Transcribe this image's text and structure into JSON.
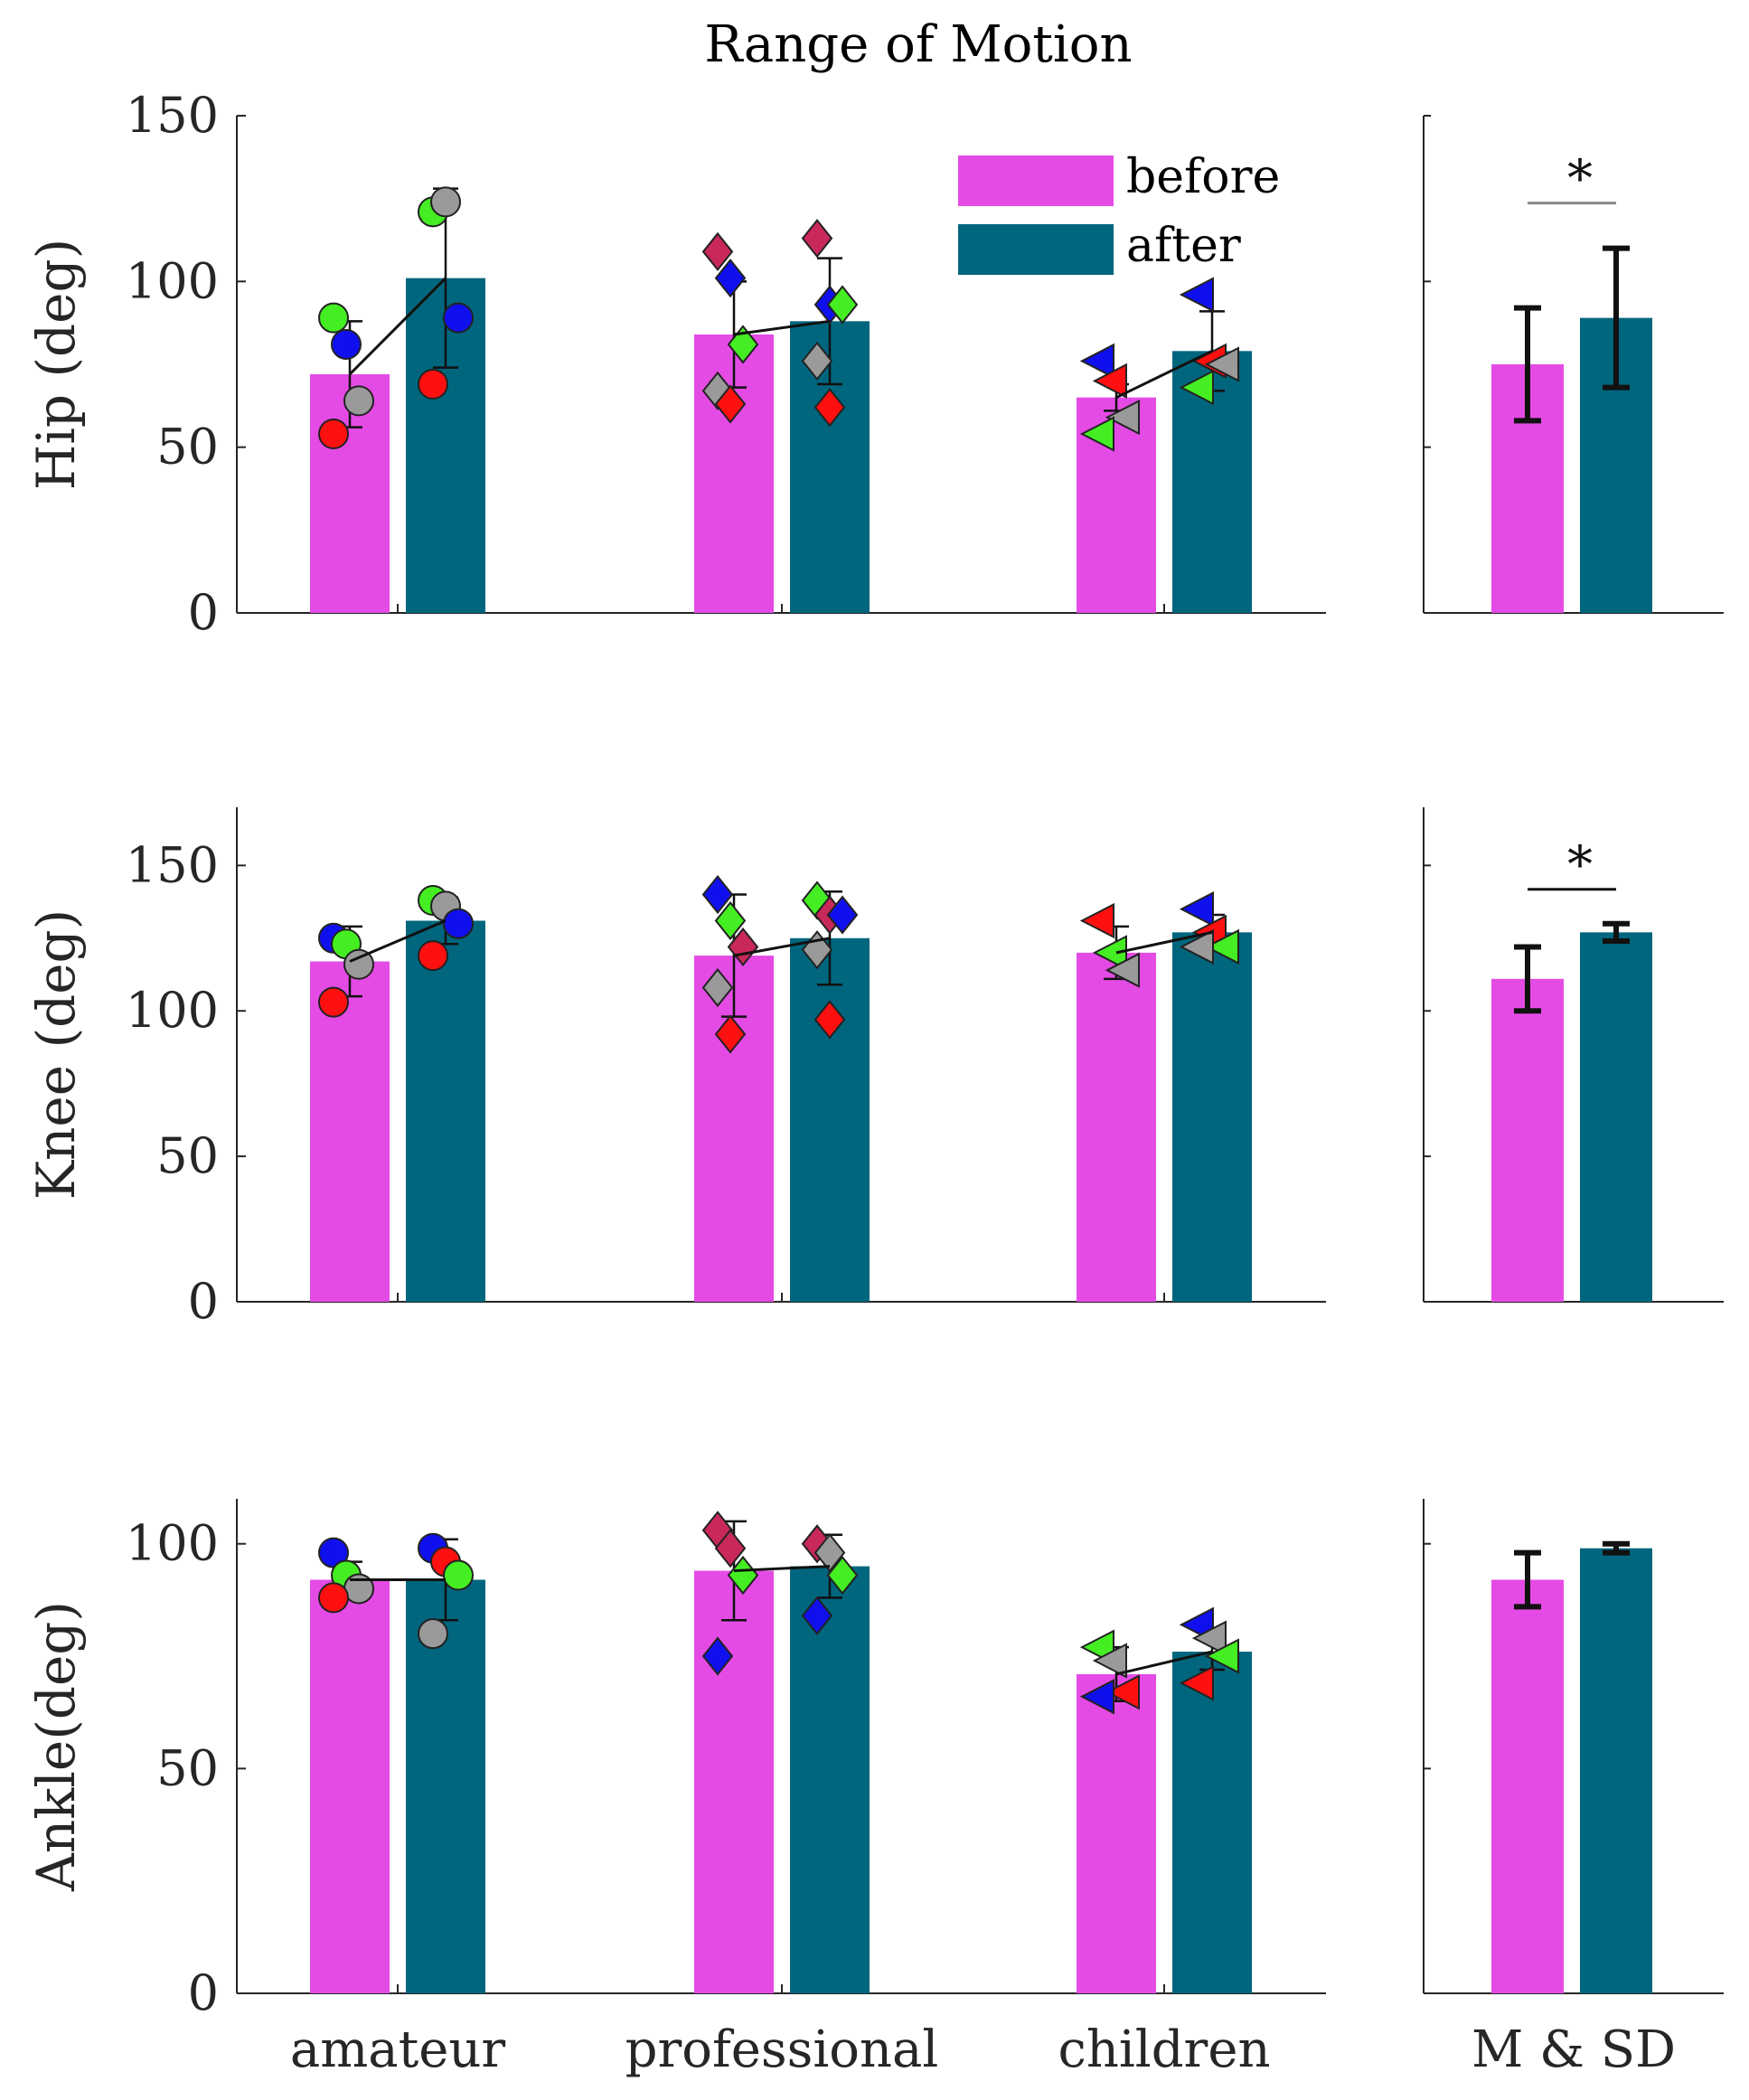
{
  "figure": {
    "title": "Range of Motion",
    "legend_before": "before",
    "legend_after": "after",
    "summary_label": "M & SD"
  },
  "colors": {
    "before": "#e44be4",
    "after": "#00667d",
    "red": "#ff1010",
    "green": "#44ee22",
    "blue": "#1010ee",
    "gray": "#9a9a9a",
    "crimson": "#c8285a"
  },
  "chart_data": [
    {
      "type": "bar",
      "ylabel": "Hip (deg)",
      "ylim": [
        0,
        150
      ],
      "yticks": [
        0,
        50,
        100,
        150
      ],
      "categories": [
        "amateur",
        "professional",
        "children"
      ],
      "series": [
        {
          "name": "before",
          "values": [
            72,
            84,
            65
          ],
          "sd": [
            16,
            16,
            4
          ]
        },
        {
          "name": "after",
          "values": [
            101,
            88,
            79
          ],
          "sd": [
            27,
            19,
            12
          ]
        }
      ],
      "points": [
        {
          "marker": "circle",
          "before": [
            [
              "green",
              89
            ],
            [
              "blue",
              81
            ],
            [
              "gray",
              64
            ],
            [
              "red",
              54
            ]
          ],
          "after": [
            [
              "green",
              121
            ],
            [
              "gray",
              124
            ],
            [
              "blue",
              89
            ],
            [
              "red",
              69
            ]
          ]
        },
        {
          "marker": "diamond",
          "before": [
            [
              "crimson",
              109
            ],
            [
              "blue",
              101
            ],
            [
              "green",
              81
            ],
            [
              "gray",
              67
            ],
            [
              "red",
              63
            ]
          ],
          "after": [
            [
              "crimson",
              113
            ],
            [
              "blue",
              93
            ],
            [
              "green",
              93
            ],
            [
              "gray",
              76
            ],
            [
              "red",
              62
            ]
          ]
        },
        {
          "marker": "triangle-left",
          "before": [
            [
              "blue",
              76
            ],
            [
              "red",
              70
            ],
            [
              "gray",
              59
            ],
            [
              "green",
              54
            ]
          ],
          "after": [
            [
              "blue",
              96
            ],
            [
              "red",
              76
            ],
            [
              "gray",
              75
            ],
            [
              "green",
              68
            ]
          ]
        }
      ],
      "summary": {
        "means": [
          75,
          89
        ],
        "sd": [
          17,
          21
        ],
        "significance": "*"
      }
    },
    {
      "type": "bar",
      "ylabel": "Knee (deg)",
      "ylim": [
        0,
        170
      ],
      "yticks": [
        0,
        50,
        100,
        150
      ],
      "categories": [
        "amateur",
        "professional",
        "children"
      ],
      "series": [
        {
          "name": "before",
          "values": [
            117,
            119,
            120
          ],
          "sd": [
            12,
            21,
            9
          ]
        },
        {
          "name": "after",
          "values": [
            131,
            125,
            127
          ],
          "sd": [
            8,
            16,
            6
          ]
        }
      ],
      "points": [
        {
          "marker": "circle",
          "before": [
            [
              "blue",
              125
            ],
            [
              "green",
              123
            ],
            [
              "gray",
              116
            ],
            [
              "red",
              103
            ]
          ],
          "after": [
            [
              "green",
              138
            ],
            [
              "gray",
              136
            ],
            [
              "blue",
              130
            ],
            [
              "red",
              119
            ]
          ]
        },
        {
          "marker": "diamond",
          "before": [
            [
              "blue",
              140
            ],
            [
              "green",
              131
            ],
            [
              "crimson",
              122
            ],
            [
              "gray",
              108
            ],
            [
              "red",
              92
            ]
          ],
          "after": [
            [
              "green",
              138
            ],
            [
              "crimson",
              133
            ],
            [
              "blue",
              133
            ],
            [
              "gray",
              121
            ],
            [
              "red",
              97
            ]
          ]
        },
        {
          "marker": "triangle-left",
          "before": [
            [
              "red",
              131
            ],
            [
              "green",
              120
            ],
            [
              "gray",
              114
            ]
          ],
          "after": [
            [
              "blue",
              135
            ],
            [
              "red",
              127
            ],
            [
              "green",
              122
            ],
            [
              "gray",
              122
            ]
          ]
        }
      ],
      "summary": {
        "means": [
          111,
          127
        ],
        "sd": [
          11,
          3
        ],
        "significance": "*"
      }
    },
    {
      "type": "bar",
      "ylabel": "Ankle(deg)",
      "ylim": [
        0,
        110
      ],
      "yticks": [
        0,
        50,
        100
      ],
      "categories": [
        "amateur",
        "professional",
        "children"
      ],
      "series": [
        {
          "name": "before",
          "values": [
            92,
            94,
            71
          ],
          "sd": [
            4,
            11,
            6
          ]
        },
        {
          "name": "after",
          "values": [
            92,
            95,
            76
          ],
          "sd": [
            9,
            7,
            4
          ]
        }
      ],
      "points": [
        {
          "marker": "circle",
          "before": [
            [
              "blue",
              98
            ],
            [
              "green",
              93
            ],
            [
              "gray",
              90
            ],
            [
              "red",
              88
            ]
          ],
          "after": [
            [
              "blue",
              99
            ],
            [
              "red",
              96
            ],
            [
              "green",
              93
            ],
            [
              "gray",
              80
            ]
          ]
        },
        {
          "marker": "diamond",
          "before": [
            [
              "crimson",
              103
            ],
            [
              "crimson",
              99
            ],
            [
              "green",
              93
            ],
            [
              "blue",
              75
            ]
          ],
          "after": [
            [
              "crimson",
              100
            ],
            [
              "gray",
              98
            ],
            [
              "green",
              93
            ],
            [
              "blue",
              84
            ]
          ]
        },
        {
          "marker": "triangle-left",
          "before": [
            [
              "green",
              77
            ],
            [
              "gray",
              74
            ],
            [
              "red",
              67
            ],
            [
              "blue",
              66
            ]
          ],
          "after": [
            [
              "blue",
              82
            ],
            [
              "gray",
              79
            ],
            [
              "green",
              75
            ],
            [
              "red",
              69
            ]
          ]
        }
      ],
      "summary": {
        "means": [
          92,
          99
        ],
        "sd": [
          6,
          1
        ],
        "significance": ""
      }
    }
  ]
}
